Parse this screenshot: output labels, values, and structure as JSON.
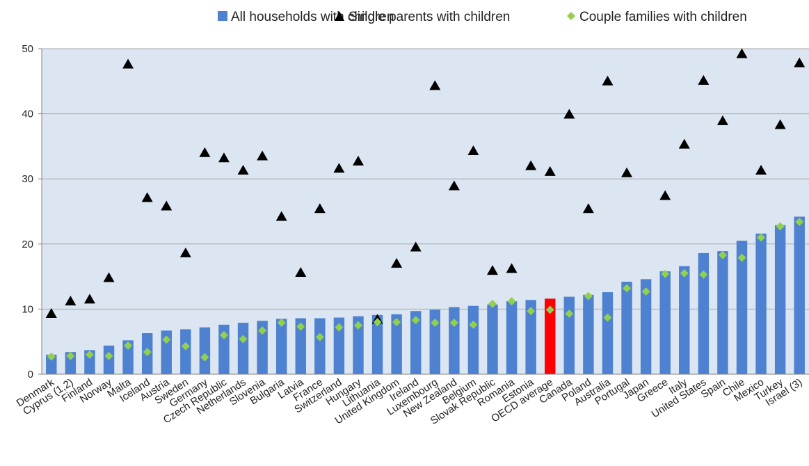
{
  "chart_data": {
    "type": "bar",
    "ylim": [
      0,
      50
    ],
    "yticks": [
      0,
      10,
      20,
      30,
      40,
      50
    ],
    "grid": true,
    "legend_position": "top",
    "categories": [
      "Denmark",
      "Cyprus (1,2)",
      "Finland",
      "Norway",
      "Malta",
      "Iceland",
      "Austria",
      "Sweden",
      "Germany",
      "Czech Republic",
      "Netherlands",
      "Slovenia",
      "Bulgaria",
      "Latvia",
      "France",
      "Switzerland",
      "Hungary",
      "Lithuania",
      "United Kingdom",
      "Ireland",
      "Luxembourg",
      "New Zealand",
      "Belgium",
      "Slovak Republic",
      "Romania",
      "Estonia",
      "OECD average",
      "Canada",
      "Poland",
      "Australia",
      "Portugal",
      "Japan",
      "Greece",
      "Italy",
      "United States",
      "Spain",
      "Chile",
      "Mexico",
      "Turkey",
      "Israel (3)"
    ],
    "highlight_category": "OECD average",
    "series": [
      {
        "name": "All households with children",
        "kind": "bar",
        "color": "#4f81d1",
        "highlight_color": "#ff0000",
        "values": [
          3.0,
          3.4,
          3.7,
          4.4,
          5.2,
          6.3,
          6.7,
          6.9,
          7.2,
          7.6,
          7.9,
          8.2,
          8.5,
          8.6,
          8.6,
          8.7,
          8.9,
          9.1,
          9.2,
          9.7,
          9.9,
          10.3,
          10.5,
          10.7,
          11.2,
          11.4,
          11.6,
          11.9,
          12.2,
          12.6,
          14.2,
          14.6,
          15.8,
          16.6,
          18.6,
          18.9,
          20.5,
          21.6,
          22.9,
          24.2
        ]
      },
      {
        "name": "Single parents with children",
        "kind": "triangle",
        "color": "#000000",
        "values": [
          9.3,
          11.2,
          11.5,
          14.8,
          47.6,
          27.1,
          25.8,
          18.6,
          34.0,
          33.2,
          31.3,
          33.5,
          24.2,
          15.6,
          25.4,
          31.6,
          32.7,
          8.4,
          17.0,
          19.5,
          44.3,
          28.9,
          34.3,
          15.9,
          16.2,
          32.0,
          31.1,
          39.9,
          25.4,
          45.0,
          30.9,
          null,
          27.4,
          35.3,
          45.1,
          38.9,
          49.2,
          31.3,
          38.3,
          47.8
        ]
      },
      {
        "name": "Couple families with children",
        "kind": "diamond",
        "color": "#92d050",
        "values": [
          2.7,
          2.8,
          3.0,
          2.8,
          4.4,
          3.4,
          5.3,
          4.3,
          2.6,
          6.0,
          5.4,
          6.7,
          7.9,
          7.3,
          5.7,
          7.2,
          7.5,
          8.0,
          8.0,
          8.3,
          7.9,
          7.9,
          7.6,
          10.8,
          11.2,
          9.7,
          9.9,
          9.3,
          12.0,
          8.7,
          13.2,
          12.7,
          15.4,
          15.5,
          15.3,
          18.3,
          17.9,
          21.0,
          22.7,
          23.4
        ]
      }
    ]
  }
}
